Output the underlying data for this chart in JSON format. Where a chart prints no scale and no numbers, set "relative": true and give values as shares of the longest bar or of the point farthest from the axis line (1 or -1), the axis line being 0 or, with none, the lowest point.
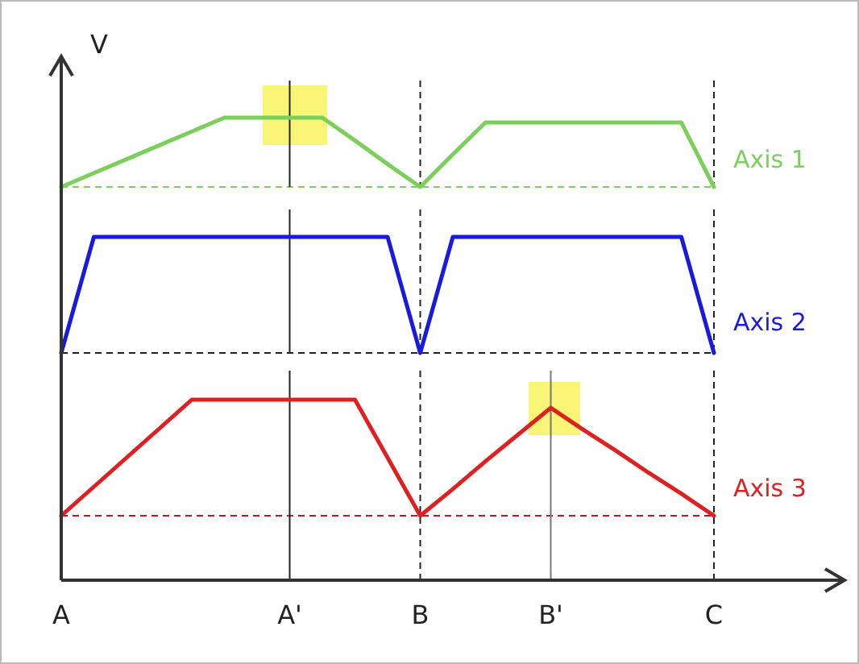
{
  "chart_data": [
    {
      "type": "line",
      "relative": true,
      "ylabel": "V",
      "tick_labels": false,
      "categories": [
        "A",
        null,
        null,
        null,
        null,
        null,
        null,
        "A'",
        null,
        null,
        null,
        "B",
        null,
        null,
        null,
        "B'",
        null,
        null,
        null,
        null,
        "C"
      ],
      "series": [
        {
          "name": "Axis 1",
          "color": "#7ccf5a",
          "values": [
            0,
            0.2,
            0.4,
            0.6,
            0.8,
            1,
            1,
            1,
            1,
            0.67,
            0.33,
            0,
            0.47,
            0.93,
            0.93,
            0.93,
            0.93,
            0.93,
            0.93,
            0.93,
            0
          ]
        }
      ],
      "ref_lines": [
        {
          "axis": "y",
          "value": 0,
          "color": "#7ccf5a",
          "line_style": "dashed"
        },
        {
          "axis": "x",
          "value": "A'",
          "color": "#222222",
          "line_style": "solid"
        },
        {
          "axis": "x",
          "value": "B",
          "color": "#222222",
          "line_style": "dashed"
        },
        {
          "axis": "x",
          "value": "C",
          "color": "#222222",
          "line_style": "dashed"
        }
      ]
    },
    {
      "type": "line",
      "relative": true,
      "tick_labels": false,
      "categories": [
        "A",
        null,
        null,
        null,
        null,
        null,
        null,
        "A'",
        null,
        null,
        null,
        "B",
        null,
        null,
        null,
        "B'",
        null,
        null,
        null,
        null,
        "C"
      ],
      "series": [
        {
          "name": "Axis 2",
          "color": "#1a1adf",
          "values": [
            0,
            1,
            1,
            1,
            1,
            1,
            1,
            1,
            1,
            1,
            1,
            0,
            1,
            1,
            1,
            1,
            1,
            1,
            1,
            1,
            0
          ]
        }
      ],
      "ref_lines": [
        {
          "axis": "y",
          "value": 0,
          "color": "#222222",
          "line_style": "dashed"
        },
        {
          "axis": "x",
          "value": "A'",
          "color": "#222222",
          "line_style": "solid"
        },
        {
          "axis": "x",
          "value": "B",
          "color": "#222222",
          "line_style": "dashed"
        },
        {
          "axis": "x",
          "value": "C",
          "color": "#222222",
          "line_style": "dashed"
        }
      ]
    },
    {
      "type": "line",
      "relative": true,
      "tick_labels": "x",
      "categories": [
        "A",
        null,
        null,
        null,
        null,
        null,
        null,
        "A'",
        null,
        null,
        null,
        "B",
        null,
        null,
        null,
        "B'",
        null,
        null,
        null,
        null,
        "C"
      ],
      "series": [
        {
          "name": "Axis 3",
          "color": "#e02020",
          "values": [
            0,
            0.25,
            0.5,
            0.75,
            1,
            1,
            1,
            1,
            1,
            1,
            0.5,
            0,
            0.23,
            0.47,
            0.7,
            0.93,
            0.74,
            0.56,
            0.37,
            0.19,
            0
          ]
        }
      ],
      "ref_lines": [
        {
          "axis": "y",
          "value": 0,
          "color": "#b02020",
          "line_style": "dashed"
        },
        {
          "axis": "x",
          "value": "A'",
          "color": "#222222",
          "line_style": "solid"
        },
        {
          "axis": "x",
          "value": "B",
          "color": "#222222",
          "line_style": "dashed"
        },
        {
          "axis": "x",
          "value": "B'",
          "color": "#777777",
          "line_style": "solid"
        },
        {
          "axis": "x",
          "value": "C",
          "color": "#222222",
          "line_style": "dashed"
        }
      ]
    }
  ]
}
